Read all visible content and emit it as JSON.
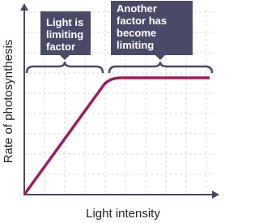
{
  "x_axis_label": "Light intensity",
  "y_axis_label": "Rate of photosynthesis",
  "annotations": [
    {
      "lines": [
        "Light is",
        "limiting",
        "factor"
      ]
    },
    {
      "lines": [
        "Another",
        "factor has",
        "become",
        "limiting"
      ]
    }
  ]
}
